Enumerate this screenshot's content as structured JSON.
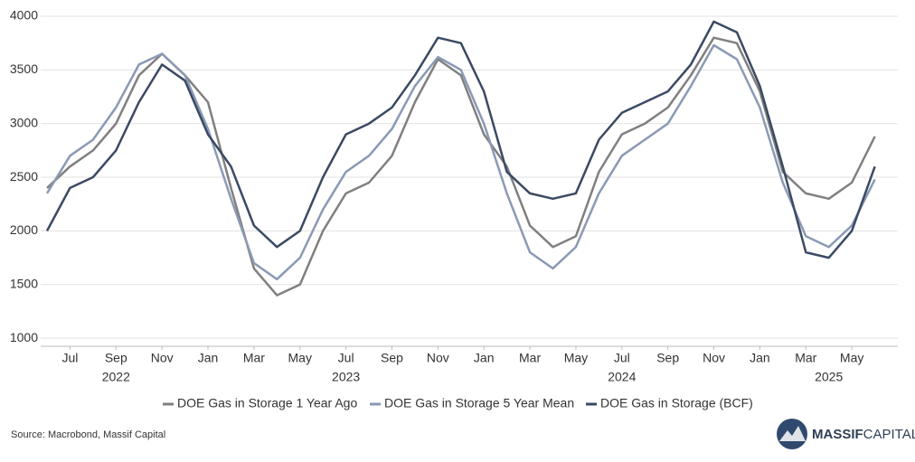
{
  "chart_data": {
    "type": "line",
    "x": [
      "2022-06",
      "2022-07",
      "2022-08",
      "2022-09",
      "2022-10",
      "2022-11",
      "2022-12",
      "2023-01",
      "2023-02",
      "2023-03",
      "2023-04",
      "2023-05",
      "2023-06",
      "2023-07",
      "2023-08",
      "2023-09",
      "2023-10",
      "2023-11",
      "2023-12",
      "2024-01",
      "2024-02",
      "2024-03",
      "2024-04",
      "2024-05",
      "2024-06",
      "2024-07",
      "2024-08",
      "2024-09",
      "2024-10",
      "2024-11",
      "2024-12",
      "2025-01",
      "2025-02",
      "2025-03",
      "2025-04",
      "2025-05",
      "2025-06"
    ],
    "series": [
      {
        "name": "DOE Gas in Storage 1 Year Ago",
        "color": "#808080",
        "values": [
          2400,
          2600,
          2750,
          3000,
          3450,
          3650,
          3450,
          3200,
          2400,
          1650,
          1400,
          1500,
          2000,
          2350,
          2450,
          2700,
          3200,
          3600,
          3450,
          2900,
          2600,
          2050,
          1850,
          1950,
          2550,
          2900,
          3000,
          3150,
          3450,
          3800,
          3750,
          3300,
          2550,
          2350,
          2300,
          2450,
          2880
        ]
      },
      {
        "name": "DOE Gas in Storage 5 Year Mean",
        "color": "#8a9ab5",
        "values": [
          2350,
          2700,
          2850,
          3150,
          3550,
          3650,
          3450,
          2950,
          2300,
          1700,
          1550,
          1750,
          2200,
          2550,
          2700,
          2950,
          3350,
          3620,
          3500,
          3000,
          2350,
          1800,
          1650,
          1850,
          2350,
          2700,
          2850,
          3000,
          3350,
          3730,
          3600,
          3150,
          2450,
          1950,
          1850,
          2050,
          2480
        ]
      },
      {
        "name": "DOE Gas in Storage (BCF)",
        "color": "#3b4a63",
        "values": [
          2000,
          2400,
          2500,
          2750,
          3200,
          3550,
          3400,
          2900,
          2600,
          2050,
          1850,
          2000,
          2500,
          2900,
          3000,
          3150,
          3450,
          3800,
          3750,
          3300,
          2550,
          2350,
          2300,
          2350,
          2850,
          3100,
          3200,
          3300,
          3550,
          3950,
          3850,
          3350,
          2600,
          1800,
          1750,
          2000,
          2600
        ]
      }
    ],
    "xlim": [
      "2022-06",
      "2025-07"
    ],
    "xticks": [
      {
        "value": "2022-07",
        "label": "Jul"
      },
      {
        "value": "2022-09",
        "label": "Sep"
      },
      {
        "value": "2022-11",
        "label": "Nov"
      },
      {
        "value": "2023-01",
        "label": "Jan"
      },
      {
        "value": "2023-03",
        "label": "Mar"
      },
      {
        "value": "2023-05",
        "label": "May"
      },
      {
        "value": "2023-07",
        "label": "Jul"
      },
      {
        "value": "2023-09",
        "label": "Sep"
      },
      {
        "value": "2023-11",
        "label": "Nov"
      },
      {
        "value": "2024-01",
        "label": "Jan"
      },
      {
        "value": "2024-03",
        "label": "Mar"
      },
      {
        "value": "2024-05",
        "label": "May"
      },
      {
        "value": "2024-07",
        "label": "Jul"
      },
      {
        "value": "2024-09",
        "label": "Sep"
      },
      {
        "value": "2024-11",
        "label": "Nov"
      },
      {
        "value": "2025-01",
        "label": "Jan"
      },
      {
        "value": "2025-03",
        "label": "Mar"
      },
      {
        "value": "2025-05",
        "label": "May"
      }
    ],
    "x_year_labels": [
      {
        "value": "2022-09",
        "label": "2022"
      },
      {
        "value": "2023-07",
        "label": "2023"
      },
      {
        "value": "2024-07",
        "label": "2024"
      },
      {
        "value": "2025-04",
        "label": "2025"
      }
    ],
    "ylim": [
      925,
      4000
    ],
    "yticks": [
      1000,
      1500,
      2000,
      2500,
      3000,
      3500,
      4000
    ],
    "grid": true,
    "legend": "bottom",
    "source": "Source: Macrobond, Massif Capital",
    "logo": [
      "MASSIF",
      "CAPITAL"
    ]
  }
}
